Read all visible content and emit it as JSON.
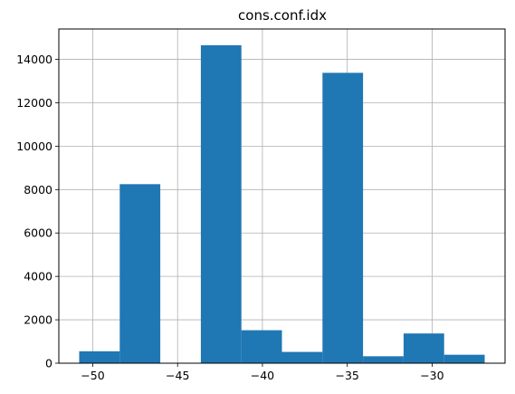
{
  "chart_data": {
    "type": "histogram",
    "title": "cons.conf.idx",
    "xlabel": "",
    "ylabel": "",
    "grid": true,
    "bins": [
      {
        "x0": -50.8,
        "x1": -48.41,
        "count": 550
      },
      {
        "x0": -48.41,
        "x1": -46.02,
        "count": 8250
      },
      {
        "x0": -46.02,
        "x1": -43.63,
        "count": 0
      },
      {
        "x0": -43.63,
        "x1": -41.24,
        "count": 14650
      },
      {
        "x0": -41.24,
        "x1": -38.85,
        "count": 1520
      },
      {
        "x0": -38.85,
        "x1": -36.46,
        "count": 520
      },
      {
        "x0": -36.46,
        "x1": -34.07,
        "count": 13380
      },
      {
        "x0": -34.07,
        "x1": -31.68,
        "count": 320
      },
      {
        "x0": -31.68,
        "x1": -29.29,
        "count": 1370
      },
      {
        "x0": -29.29,
        "x1": -26.9,
        "count": 390
      }
    ],
    "xlim": [
      -52.0,
      -25.7
    ],
    "ylim": [
      0,
      15400
    ],
    "xticks": [
      -50,
      -45,
      -40,
      -35,
      -30
    ],
    "xtick_labels": [
      "−50",
      "−45",
      "−40",
      "−35",
      "−30"
    ],
    "yticks": [
      0,
      2000,
      4000,
      6000,
      8000,
      10000,
      12000,
      14000
    ],
    "ytick_labels": [
      "0",
      "2000",
      "4000",
      "6000",
      "8000",
      "10000",
      "12000",
      "14000"
    ],
    "bar_color": "#1f77b4",
    "grid_color": "#b0b0b0"
  }
}
